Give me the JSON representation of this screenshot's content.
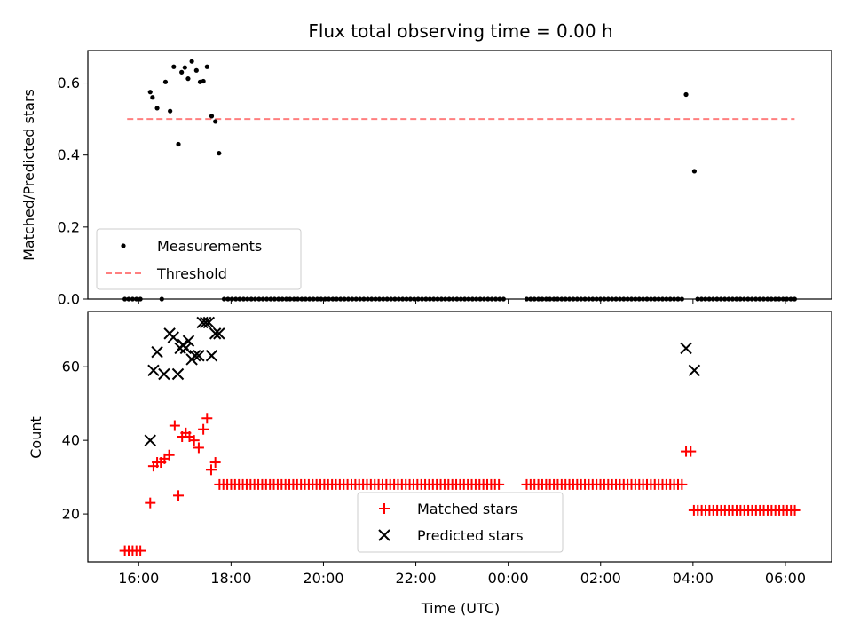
{
  "title": "Flux total observing time = 0.00 h",
  "chart_data": [
    {
      "type": "scatter",
      "ylabel": "Matched/Predicted stars",
      "xlabel": "",
      "ylim": [
        0,
        0.69
      ],
      "yticks": [
        0.0,
        0.2,
        0.4,
        0.6
      ],
      "ytick_labels": [
        "0.0",
        "0.2",
        "0.4",
        "0.6"
      ],
      "legend": {
        "placement": "lower-left",
        "entries": [
          "Measurements",
          "Threshold"
        ]
      },
      "threshold": {
        "name": "Threshold",
        "value": 0.5,
        "x_range": [
          15.75,
          30.2
        ],
        "color": "#ff7f7f"
      },
      "series": [
        {
          "name": "Measurements",
          "color": "#000000",
          "points": [
            [
              16.25,
              0.575
            ],
            [
              16.3,
              0.56
            ],
            [
              16.4,
              0.53
            ],
            [
              16.58,
              0.603
            ],
            [
              16.68,
              0.522
            ],
            [
              16.76,
              0.645
            ],
            [
              16.86,
              0.43
            ],
            [
              16.93,
              0.63
            ],
            [
              17.0,
              0.643
            ],
            [
              17.07,
              0.612
            ],
            [
              17.15,
              0.66
            ],
            [
              17.25,
              0.635
            ],
            [
              17.33,
              0.603
            ],
            [
              17.4,
              0.605
            ],
            [
              17.48,
              0.645
            ],
            [
              17.58,
              0.508
            ],
            [
              17.66,
              0.493
            ],
            [
              17.74,
              0.405
            ],
            [
              27.85,
              0.568
            ],
            [
              28.03,
              0.355
            ]
          ],
          "zero_segments": [
            [
              15.7,
              16.1,
              0.084
            ],
            [
              16.5,
              16.5,
              0.1
            ],
            [
              17.85,
              23.95,
              0.084
            ],
            [
              24.4,
              27.8,
              0.084
            ],
            [
              28.1,
              30.25,
              0.084
            ]
          ]
        }
      ]
    },
    {
      "type": "scatter",
      "ylabel": "Count",
      "xlabel": "Time (UTC)",
      "ylim": [
        7,
        75
      ],
      "yticks": [
        20,
        40,
        60
      ],
      "ytick_labels": [
        "20",
        "40",
        "60"
      ],
      "xlim": [
        14.9,
        31.0
      ],
      "xticks": [
        16,
        18,
        20,
        22,
        24,
        26,
        28,
        30
      ],
      "xtick_labels": [
        "16:00",
        "18:00",
        "20:00",
        "22:00",
        "00:00",
        "02:00",
        "04:00",
        "06:00"
      ],
      "legend": {
        "placement": "lower-center",
        "entries": [
          "Matched stars",
          "Predicted stars"
        ]
      },
      "series": [
        {
          "name": "Matched stars",
          "color": "#ff0000",
          "marker": "plus",
          "points": [
            [
              16.25,
              23
            ],
            [
              16.32,
              33
            ],
            [
              16.4,
              34
            ],
            [
              16.48,
              34
            ],
            [
              16.56,
              35
            ],
            [
              16.66,
              36
            ],
            [
              16.78,
              44
            ],
            [
              16.86,
              25
            ],
            [
              16.94,
              41
            ],
            [
              17.02,
              42
            ],
            [
              17.1,
              41
            ],
            [
              17.2,
              40
            ],
            [
              17.3,
              38
            ],
            [
              17.4,
              43
            ],
            [
              17.48,
              46
            ],
            [
              17.57,
              32
            ],
            [
              17.66,
              34
            ],
            [
              27.85,
              37
            ],
            [
              27.95,
              37
            ]
          ],
          "flat_segments": [
            [
              15.7,
              16.1,
              0.084,
              10
            ],
            [
              17.75,
              23.85,
              0.084,
              28
            ],
            [
              24.4,
              27.8,
              0.084,
              28
            ],
            [
              28.02,
              30.25,
              0.084,
              21
            ]
          ]
        },
        {
          "name": "Predicted stars",
          "color": "#000000",
          "marker": "x",
          "points": [
            [
              16.25,
              40
            ],
            [
              16.32,
              59
            ],
            [
              16.4,
              64
            ],
            [
              16.55,
              58
            ],
            [
              16.67,
              69
            ],
            [
              16.75,
              68
            ],
            [
              16.85,
              58
            ],
            [
              16.9,
              65
            ],
            [
              16.96,
              66
            ],
            [
              17.02,
              65
            ],
            [
              17.08,
              67
            ],
            [
              17.15,
              62
            ],
            [
              17.22,
              63
            ],
            [
              17.3,
              63
            ],
            [
              17.38,
              72
            ],
            [
              17.45,
              72
            ],
            [
              17.52,
              72
            ],
            [
              17.58,
              63
            ],
            [
              17.66,
              69
            ],
            [
              17.74,
              69
            ],
            [
              27.85,
              65
            ],
            [
              28.03,
              59
            ]
          ]
        }
      ]
    }
  ]
}
